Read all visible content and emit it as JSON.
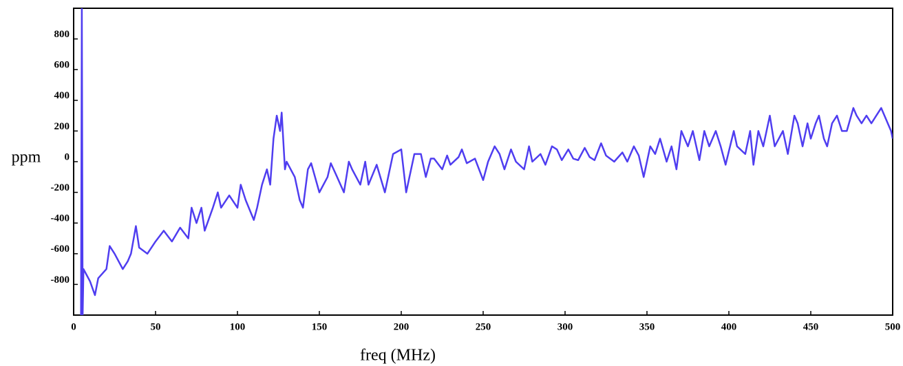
{
  "chart_data": {
    "type": "line",
    "xlabel": "freq (MHz)",
    "ylabel": "ppm",
    "xlim": [
      0,
      500
    ],
    "ylim": [
      -1000,
      1000
    ],
    "xticks": [
      0,
      50,
      100,
      150,
      200,
      250,
      300,
      350,
      400,
      450,
      500
    ],
    "yticks": [
      -800,
      -600,
      -400,
      -200,
      0,
      200,
      400,
      600,
      800
    ],
    "series": [
      {
        "color": "#4f3df0",
        "x": [
          4.5,
          5,
          5.5,
          6,
          10,
          13,
          15,
          20,
          22,
          25,
          30,
          33,
          35,
          38,
          40,
          45,
          50,
          55,
          60,
          65,
          70,
          72,
          75,
          78,
          80,
          85,
          88,
          90,
          95,
          100,
          102,
          105,
          110,
          112,
          115,
          118,
          120,
          122,
          124,
          126,
          127,
          129,
          130,
          135,
          138,
          140,
          143,
          145,
          150,
          155,
          157,
          160,
          165,
          168,
          170,
          175,
          178,
          180,
          185,
          190,
          195,
          200,
          203,
          205,
          208,
          212,
          215,
          218,
          220,
          225,
          228,
          230,
          235,
          237,
          240,
          245,
          250,
          253,
          257,
          260,
          263,
          267,
          270,
          275,
          278,
          280,
          285,
          288,
          292,
          295,
          298,
          302,
          305,
          308,
          312,
          315,
          318,
          322,
          325,
          330,
          335,
          338,
          342,
          345,
          348,
          352,
          355,
          358,
          362,
          365,
          368,
          371,
          375,
          378,
          382,
          385,
          388,
          392,
          395,
          398,
          403,
          405,
          410,
          413,
          415,
          418,
          421,
          425,
          428,
          433,
          436,
          440,
          442,
          445,
          448,
          450,
          453,
          455,
          458,
          460,
          463,
          466,
          469,
          472,
          476,
          478,
          481,
          484,
          487,
          490,
          493,
          495,
          497,
          499,
          500
        ],
        "values": [
          -1000,
          1000,
          -1000,
          -700,
          -780,
          -870,
          -760,
          -700,
          -550,
          -600,
          -700,
          -650,
          -600,
          -420,
          -560,
          -600,
          -520,
          -450,
          -520,
          -430,
          -500,
          -300,
          -400,
          -300,
          -450,
          -300,
          -200,
          -300,
          -220,
          -300,
          -150,
          -250,
          -380,
          -300,
          -150,
          -50,
          -150,
          150,
          300,
          200,
          320,
          -50,
          0,
          -100,
          -250,
          -300,
          -50,
          -10,
          -200,
          -100,
          -10,
          -80,
          -200,
          0,
          -50,
          -150,
          0,
          -150,
          -20,
          -200,
          50,
          80,
          -200,
          -100,
          50,
          50,
          -100,
          20,
          20,
          -50,
          40,
          -20,
          30,
          80,
          -10,
          20,
          -120,
          0,
          100,
          50,
          -50,
          80,
          0,
          -50,
          100,
          0,
          50,
          -20,
          100,
          80,
          10,
          80,
          20,
          10,
          90,
          30,
          10,
          120,
          40,
          0,
          60,
          0,
          100,
          40,
          -100,
          100,
          50,
          150,
          0,
          100,
          -50,
          200,
          100,
          200,
          10,
          200,
          100,
          200,
          100,
          -20,
          200,
          100,
          50,
          200,
          -20,
          200,
          100,
          300,
          100,
          200,
          50,
          300,
          250,
          100,
          250,
          150,
          250,
          300,
          150,
          100,
          250,
          300,
          200,
          200,
          350,
          300,
          250,
          300,
          250,
          300,
          350,
          300,
          250,
          200,
          150
        ]
      }
    ]
  }
}
